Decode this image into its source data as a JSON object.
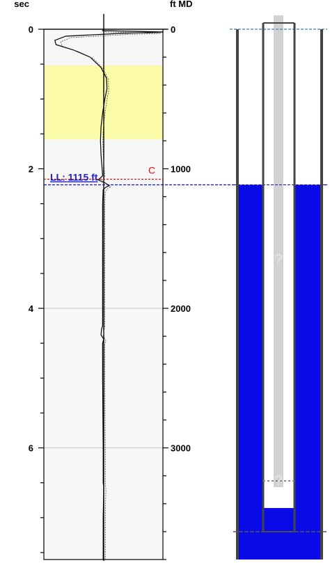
{
  "chart_data": {
    "type": "line",
    "left_axis": {
      "label": "sec",
      "ticks": [
        0,
        2,
        4,
        6
      ],
      "range": [
        0,
        7.6
      ]
    },
    "right_axis": {
      "label": "ft MD",
      "ticks": [
        0,
        1000,
        2000,
        3000
      ],
      "range": [
        0,
        3800
      ]
    },
    "highlight_zone_sec": [
      0.52,
      1.58
    ],
    "highlight_color": "#fafaa8",
    "liquid_level": {
      "label": "LL: 1115 ft",
      "depth_ft": 1115,
      "color": "#1f1fd6"
    },
    "collar_marker": {
      "label": "C",
      "depth_ft": 1075,
      "color": "#ff0000"
    },
    "gridlines_sec": [
      4,
      6
    ],
    "trace": [
      [
        0.0,
        0
      ],
      [
        0.02,
        -0.02
      ],
      [
        0.04,
        1.1
      ],
      [
        0.06,
        0.3
      ],
      [
        0.1,
        -0.7
      ],
      [
        0.16,
        -0.9
      ],
      [
        0.22,
        -0.88
      ],
      [
        0.3,
        -0.55
      ],
      [
        0.4,
        -0.25
      ],
      [
        0.55,
        -0.05
      ],
      [
        0.7,
        0.05
      ],
      [
        0.85,
        0.06
      ],
      [
        1.0,
        0.02
      ],
      [
        1.2,
        -0.02
      ],
      [
        1.4,
        -0.05
      ],
      [
        1.6,
        -0.06
      ],
      [
        1.8,
        -0.05
      ],
      [
        2.0,
        -0.03
      ],
      [
        2.1,
        -0.02
      ],
      [
        2.16,
        -0.1
      ],
      [
        2.2,
        0.02
      ],
      [
        2.24,
        0.1
      ],
      [
        2.27,
        0.03
      ],
      [
        2.3,
        -0.01
      ],
      [
        2.5,
        -0.02
      ],
      [
        3.0,
        -0.02
      ],
      [
        3.5,
        -0.02
      ],
      [
        4.0,
        -0.02
      ],
      [
        4.25,
        -0.02
      ],
      [
        4.3,
        -0.04
      ],
      [
        4.38,
        -0.05
      ],
      [
        4.44,
        0.0
      ],
      [
        4.5,
        -0.02
      ],
      [
        5.0,
        -0.02
      ],
      [
        6.0,
        -0.01
      ],
      [
        6.5,
        -0.01
      ],
      [
        6.55,
        0.0
      ],
      [
        6.6,
        0.0
      ],
      [
        7.0,
        -0.01
      ],
      [
        7.6,
        -0.01
      ]
    ]
  },
  "wellbore": {
    "unknown_marks": [
      "?",
      "?"
    ],
    "fluid_color": "#0a0ae8",
    "liquid_top_ft": 1115,
    "bottom_ft": 3700
  }
}
